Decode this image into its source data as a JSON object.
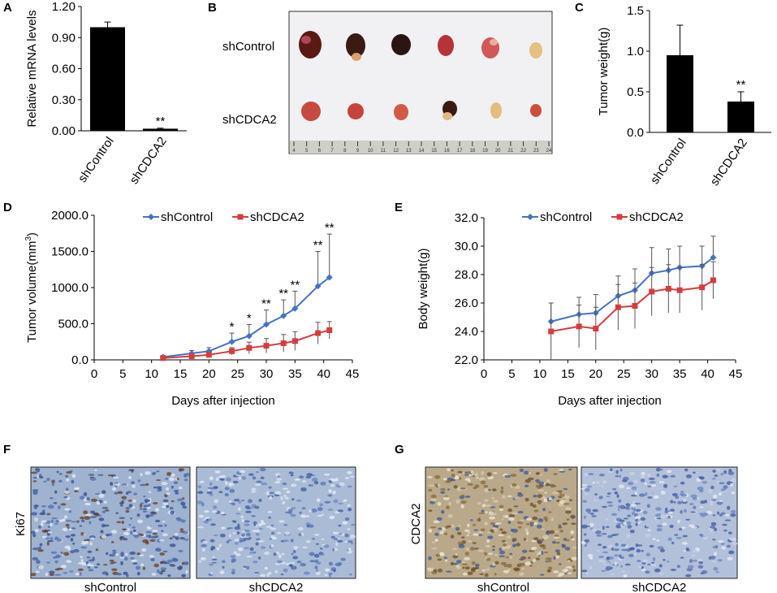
{
  "colors": {
    "control": "#4472C4",
    "knockdown": "#D63C3C",
    "bar": "#000000"
  },
  "panel_labels": {
    "A": "A",
    "B": "B",
    "C": "C",
    "D": "D",
    "E": "E",
    "F": "F",
    "G": "G"
  },
  "photo": {
    "row_labels": [
      "shControl",
      "shCDCA2"
    ],
    "ruler_ticks": [
      "4",
      "5",
      "6",
      "7",
      "8",
      "9",
      "10",
      "11",
      "12",
      "13",
      "14",
      "15",
      "16",
      "17",
      "18",
      "19",
      "20",
      "21",
      "22",
      "23",
      "24"
    ]
  },
  "ihc": {
    "F": {
      "stain_label": "Ki67",
      "captions": [
        "shControl",
        "shCDCA2"
      ]
    },
    "G": {
      "stain_label": "CDCA2",
      "captions": [
        "shControl",
        "shCDCA2"
      ]
    }
  },
  "chart_data": [
    {
      "id": "A",
      "type": "bar",
      "title": "",
      "categories": [
        "shControl",
        "shCDCA2"
      ],
      "values": [
        1.0,
        0.02
      ],
      "errors": [
        0.05,
        0.005
      ],
      "significance": [
        "",
        "**"
      ],
      "ylabel": "Relative mRNA levels",
      "ylim": [
        0,
        1.2
      ],
      "yticks": [
        "0.00",
        "0.30",
        "0.60",
        "0.90",
        "1.20"
      ]
    },
    {
      "id": "C",
      "type": "bar",
      "title": "",
      "categories": [
        "shControl",
        "shCDCA2"
      ],
      "values": [
        0.95,
        0.38
      ],
      "errors": [
        0.37,
        0.12
      ],
      "significance": [
        "",
        "**"
      ],
      "ylabel": "Tumor weight(g)",
      "ylim": [
        0,
        1.5
      ],
      "yticks": [
        "0.0",
        "0.5",
        "1.0",
        "1.5"
      ]
    },
    {
      "id": "D",
      "type": "line",
      "xlabel": "Days after injection",
      "ylabel_main": "Tumor volume(mm",
      "ylabel_sup": "3",
      "ylabel_tail": ")",
      "x": [
        12,
        17,
        20,
        24,
        27,
        30,
        33,
        35,
        39,
        41
      ],
      "series": [
        {
          "name": "shControl",
          "values": [
            40,
            90,
            120,
            250,
            330,
            490,
            610,
            710,
            1020,
            1140
          ],
          "errors": [
            20,
            40,
            50,
            120,
            160,
            200,
            220,
            240,
            480,
            600
          ]
        },
        {
          "name": "shCDCA2",
          "values": [
            25,
            50,
            70,
            120,
            165,
            195,
            230,
            260,
            370,
            410
          ],
          "errors": [
            10,
            20,
            30,
            50,
            80,
            100,
            120,
            130,
            150,
            120
          ]
        }
      ],
      "significance": [
        "",
        "",
        "",
        "*",
        "*",
        "**",
        "**",
        "**",
        "**",
        "**"
      ],
      "xlim": [
        0,
        45
      ],
      "ylim": [
        0,
        2000
      ],
      "xticks": [
        "0",
        "5",
        "10",
        "15",
        "20",
        "25",
        "30",
        "35",
        "40",
        "45"
      ],
      "yticks": [
        "0.0",
        "500.0",
        "1000.0",
        "1500.0",
        "2000.0"
      ],
      "legend": "top"
    },
    {
      "id": "E",
      "type": "line",
      "xlabel": "Days after injection",
      "ylabel": "Body weight(g)",
      "x": [
        12,
        17,
        20,
        24,
        27,
        30,
        33,
        35,
        39,
        41
      ],
      "series": [
        {
          "name": "shControl",
          "values": [
            24.7,
            25.2,
            25.3,
            26.5,
            26.9,
            28.1,
            28.3,
            28.5,
            28.6,
            29.2
          ],
          "errors": [
            1.3,
            1.2,
            1.3,
            1.4,
            1.5,
            1.8,
            1.5,
            1.5,
            1.4,
            1.5
          ]
        },
        {
          "name": "shCDCA2",
          "values": [
            24.0,
            24.35,
            24.2,
            25.7,
            25.8,
            26.8,
            27.0,
            26.9,
            27.1,
            27.6
          ],
          "errors": [
            2.0,
            1.5,
            1.5,
            1.6,
            1.6,
            1.7,
            1.7,
            1.6,
            1.6,
            1.3
          ]
        }
      ],
      "xlim": [
        0,
        45
      ],
      "ylim": [
        22,
        32
      ],
      "xticks": [
        "0",
        "5",
        "10",
        "15",
        "20",
        "25",
        "30",
        "35",
        "40",
        "45"
      ],
      "yticks": [
        "22.0",
        "24.0",
        "26.0",
        "28.0",
        "30.0",
        "32.0"
      ],
      "legend": "top"
    }
  ]
}
